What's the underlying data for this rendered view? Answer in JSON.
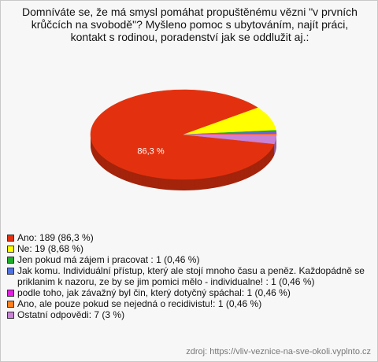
{
  "chart_data": {
    "type": "pie",
    "title": "Domníváte se, že má smysl pomáhat propuštěnému vězni \"v prvních krůčcích na svobodě\"? Myšleno pomoc s ubytováním, najít práci, kontakt s rodinou, poradenství jak se oddlužit aj.:",
    "categories": [
      "Ano: 189 (86,3 %)",
      "Ne: 19 (8,68 %)",
      "Jen pokud má zájem i pracovat : 1 (0,46 %)",
      "Jak komu. Individuální přístup, který ale stojí mnoho času a peněz. Každopádně se priklanim k nazoru, ze by se jim pomici mělo - individualne! : 1 (0,46 %)",
      "podle toho, jak závažný byl čin, který dotyčný spáchal: 1 (0,46 %)",
      "Ano, ale pouze pokud se nejedná o recidivistu!: 1 (0,46 %)",
      "Ostatní odpovědi: 7 (3 %)"
    ],
    "values": [
      86.3,
      8.68,
      0.46,
      0.46,
      0.46,
      0.46,
      3
    ],
    "value_labels": [
      "86,3 %",
      null,
      null,
      null,
      null,
      null,
      null
    ],
    "colors": [
      "#e3310f",
      "#ffff00",
      "#1fae2a",
      "#4f72e3",
      "#e41ee4",
      "#ff7f1e",
      "#c883d6"
    ],
    "source": "zdroj: https://vliv-veznice-na-sve-okoli.vyplnto.cz"
  }
}
